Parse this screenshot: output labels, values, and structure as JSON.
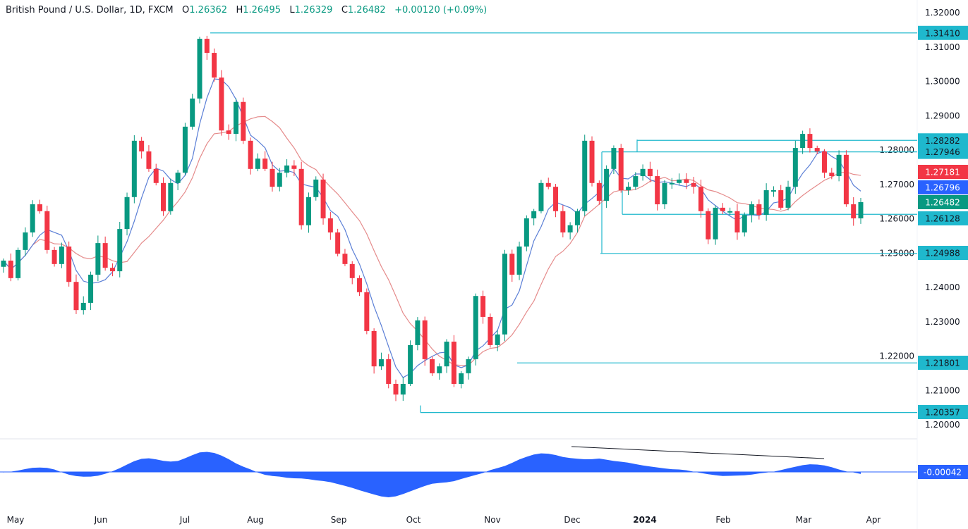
{
  "header": {
    "symbol": "British Pound / U.S. Dollar, 1D, FXCM",
    "open_prefix": "O",
    "open": "1.26362",
    "high_prefix": "H",
    "high": "1.26495",
    "low_prefix": "L",
    "low": "1.26329",
    "close_prefix": "C",
    "close": "1.26482",
    "change": "+0.00120 (+0.09%)"
  },
  "colors": {
    "up": "#089981",
    "down": "#f23645",
    "level": "#1fb8cd",
    "ma_fast": "#5b7fd6",
    "ma_slow": "#e58b8b",
    "oscillator": "#2962ff"
  },
  "chart_data": {
    "type": "candlestick",
    "title": "British Pound / U.S. Dollar, 1D, FXCM",
    "ylim": [
      1.2,
      1.32
    ],
    "y_ticks": [
      "1.32000",
      "1.31000",
      "1.30000",
      "1.29000",
      "1.28000",
      "1.27000",
      "1.26000",
      "1.25000",
      "1.24000",
      "1.23000",
      "1.22000",
      "1.21000",
      "1.20000"
    ],
    "x_ticks": [
      "May",
      "Jun",
      "Jul",
      "Aug",
      "Sep",
      "Oct",
      "Nov",
      "Dec",
      "2024",
      "Feb",
      "Mar",
      "Apr"
    ],
    "closes": [
      1.2478,
      1.2427,
      1.2509,
      1.256,
      1.2642,
      1.2622,
      1.2509,
      1.2468,
      1.2519,
      1.2416,
      1.2334,
      1.2355,
      1.2437,
      1.2529,
      1.2457,
      1.2447,
      1.257,
      1.2663,
      1.2827,
      1.2796,
      1.2745,
      1.2704,
      1.2622,
      1.2704,
      1.2734,
      1.2868,
      1.295,
      1.3124,
      1.3083,
      1.3011,
      1.2857,
      1.2847,
      1.294,
      1.2827,
      1.2745,
      1.2775,
      1.2745,
      1.2693,
      1.2734,
      1.2755,
      1.2745,
      1.2581,
      1.2663,
      1.2714,
      1.2601,
      1.256,
      1.2498,
      1.2468,
      1.2427,
      1.2386,
      1.2273,
      1.217,
      1.2191,
      1.2119,
      1.2088,
      1.2119,
      1.2232,
      1.2304,
      1.2191,
      1.215,
      1.217,
      1.2242,
      1.2119,
      1.215,
      1.2191,
      1.2375,
      1.2314,
      1.2232,
      1.2263,
      1.2498,
      1.2437,
      1.2519,
      1.2601,
      1.2622,
      1.2704,
      1.2693,
      1.2622,
      1.256,
      1.2581,
      1.2622,
      1.2827,
      1.2704,
      1.2652,
      1.2745,
      1.2806,
      1.2683,
      1.2693,
      1.2724,
      1.2745,
      1.2724,
      1.2642,
      1.2704,
      1.2704,
      1.2714,
      1.2704,
      1.2693,
      1.2622,
      1.254,
      1.2632,
      1.2622,
      1.2622,
      1.256,
      1.2611,
      1.2642,
      1.2611,
      1.2683,
      1.2683,
      1.2632,
      1.2693,
      1.2806,
      1.2847,
      1.2806,
      1.2796,
      1.2734,
      1.2724,
      1.2786,
      1.2642,
      1.2601,
      1.26482
    ],
    "levels": [
      "1.31410",
      "1.28282",
      "1.27946",
      "1.26128",
      "1.24988",
      "1.21801",
      "1.20357"
    ],
    "price_labels": {
      "ma_slow": "1.27181",
      "ma_fast": "1.26796",
      "last": "1.26482"
    },
    "oscillator_label": "-0.00042"
  }
}
